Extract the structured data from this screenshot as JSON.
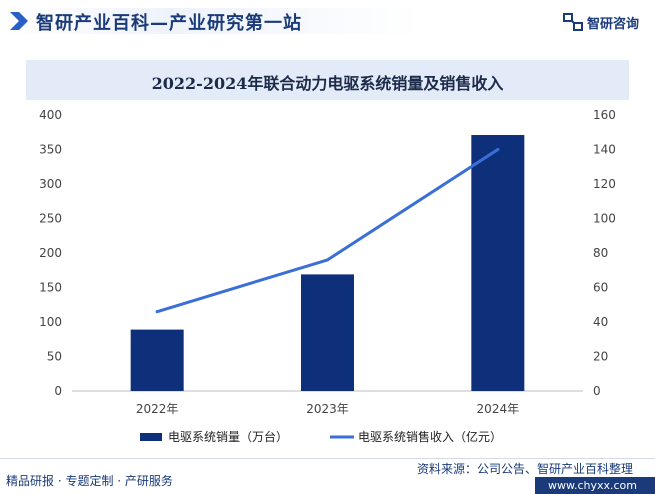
{
  "header": {
    "brand_title": "智研产业百科—产业研究第一站",
    "logo_text": "智研咨询"
  },
  "footer": {
    "left_text": "精品研报 · 专题定制 · 产研服务",
    "source_text": "资料来源：公司公告、智研产业百科整理",
    "url": "www.chyxx.com"
  },
  "chart_data": {
    "type": "bar",
    "title": "2022-2024年联合动力电驱系统销量及销售收入",
    "categories": [
      "2022年",
      "2023年",
      "2024年"
    ],
    "series": [
      {
        "name": "电驱系统销量（万台）",
        "type": "bar",
        "axis": "left",
        "values": [
          89,
          169,
          371
        ],
        "color": "#0e2f7a"
      },
      {
        "name": "电驱系统销售收入（亿元）",
        "type": "line",
        "axis": "right",
        "values": [
          46,
          76,
          140
        ],
        "color": "#3a6fd8"
      }
    ],
    "y_left": {
      "ylim": [
        0,
        400
      ],
      "ticks": [
        0,
        50,
        100,
        150,
        200,
        250,
        300,
        350,
        400
      ]
    },
    "y_right": {
      "ylim": [
        0,
        160
      ],
      "ticks": [
        0,
        20,
        40,
        60,
        80,
        100,
        120,
        140,
        160
      ]
    },
    "legend": "bottom",
    "grid": false
  }
}
